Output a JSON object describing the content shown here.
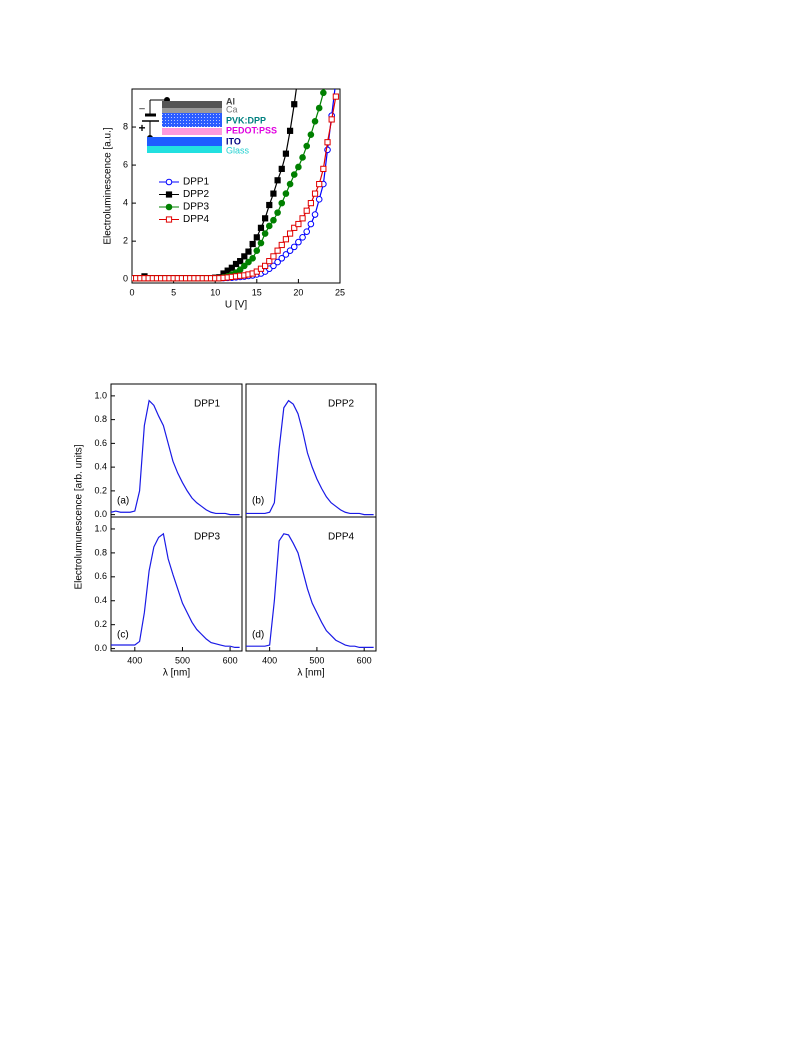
{
  "chart_data": [
    {
      "type": "line",
      "xlabel": "U [V]",
      "ylabel": "Electroluminescence [a.u.]",
      "xlim": [
        0,
        25
      ],
      "ylim": [
        -0.2,
        10
      ],
      "xticks": [
        0,
        5,
        10,
        15,
        20,
        25
      ],
      "yticks": [
        0,
        2,
        4,
        6,
        8
      ],
      "x": [
        0,
        0.5,
        1,
        1.5,
        2,
        2.5,
        3,
        3.5,
        4,
        4.5,
        5,
        5.5,
        6,
        6.5,
        7,
        7.5,
        8,
        8.5,
        9,
        9.5,
        10,
        10.5,
        11,
        11.5,
        12,
        12.5,
        13,
        13.5,
        14,
        14.5,
        15,
        15.5,
        16,
        16.5,
        17,
        17.5,
        18,
        18.5,
        19,
        19.5,
        20,
        20.5,
        21,
        21.5,
        22,
        22.5,
        23,
        23.5,
        24,
        24.5
      ],
      "series": [
        {
          "name": "DPP1",
          "color": "#0000ff",
          "marker": "circle",
          "filled": false,
          "values": [
            0.05,
            0.05,
            0.05,
            0.05,
            0.05,
            0.05,
            0.05,
            0.05,
            0.05,
            0.05,
            0.05,
            0.05,
            0.05,
            0.05,
            0.05,
            0.05,
            0.05,
            0.05,
            0.05,
            0.05,
            0.05,
            0.05,
            0.06,
            0.07,
            0.08,
            0.1,
            0.12,
            0.14,
            0.17,
            0.2,
            0.25,
            0.3,
            0.4,
            0.55,
            0.7,
            0.9,
            1.1,
            1.3,
            1.5,
            1.7,
            1.95,
            2.2,
            2.5,
            2.9,
            3.4,
            4.2,
            5.0,
            6.8,
            8.6,
            10.4
          ]
        },
        {
          "name": "DPP2",
          "color": "#000000",
          "marker": "square",
          "filled": true,
          "values": [
            0.05,
            0.05,
            0.05,
            0.15,
            0.05,
            0.05,
            0.05,
            0.05,
            0.05,
            0.05,
            0.05,
            0.05,
            0.05,
            0.05,
            0.05,
            0.05,
            0.05,
            0.05,
            0.05,
            0.05,
            0.08,
            0.1,
            0.3,
            0.45,
            0.6,
            0.8,
            0.95,
            1.2,
            1.45,
            1.85,
            2.2,
            2.7,
            3.2,
            3.9,
            4.5,
            5.2,
            5.8,
            6.6,
            7.8,
            9.2,
            10.8,
            null,
            null,
            null,
            null,
            null,
            null,
            null,
            null,
            null
          ]
        },
        {
          "name": "DPP3",
          "color": "#008000",
          "marker": "circle",
          "filled": true,
          "values": [
            0.05,
            0.05,
            0.05,
            0.05,
            0.05,
            0.05,
            0.05,
            0.05,
            0.05,
            0.05,
            0.05,
            0.05,
            0.05,
            0.05,
            0.05,
            0.05,
            0.05,
            0.05,
            0.05,
            0.05,
            0.05,
            0.05,
            0.1,
            0.15,
            0.25,
            0.35,
            0.5,
            0.7,
            0.9,
            1.1,
            1.5,
            1.9,
            2.4,
            2.8,
            3.1,
            3.5,
            4.0,
            4.5,
            5.0,
            5.5,
            5.9,
            6.4,
            7.0,
            7.6,
            8.3,
            9.0,
            9.8,
            10.6,
            null,
            null
          ]
        },
        {
          "name": "DPP4",
          "color": "#e00000",
          "marker": "square",
          "filled": false,
          "values": [
            0.05,
            0.05,
            0.05,
            0.05,
            0.05,
            0.05,
            0.05,
            0.05,
            0.05,
            0.05,
            0.05,
            0.05,
            0.05,
            0.05,
            0.05,
            0.05,
            0.05,
            0.05,
            0.05,
            0.05,
            0.05,
            0.05,
            0.07,
            0.09,
            0.12,
            0.15,
            0.18,
            0.2,
            0.25,
            0.3,
            0.4,
            0.55,
            0.7,
            0.95,
            1.2,
            1.5,
            1.8,
            2.1,
            2.4,
            2.7,
            2.9,
            3.2,
            3.6,
            4.0,
            4.5,
            5.0,
            5.8,
            7.2,
            8.4,
            9.6
          ]
        }
      ],
      "inset": {
        "layers": [
          "Al",
          "Ca",
          "PVK:DPP",
          "PEDOT:PSS",
          "ITO",
          "Glass"
        ],
        "minus": "–",
        "plus": "+"
      }
    },
    {
      "type": "panels",
      "ylabel": "Electrolumunescence  [arb. units]",
      "panels": [
        {
          "type": "line",
          "label": "(a)",
          "title": "DPP1",
          "color": "#1a1ae6",
          "xlim": [
            350,
            625
          ],
          "ylim": [
            -0.02,
            1.1
          ],
          "yticks": [
            {
              "value": 0,
              "label": "0.0"
            },
            0.2,
            0.4,
            0.6,
            0.8,
            {
              "value": 1,
              "label": "1.0"
            }
          ],
          "x": [
            350,
            360,
            370,
            380,
            390,
            400,
            410,
            420,
            430,
            440,
            450,
            460,
            470,
            480,
            490,
            500,
            510,
            520,
            530,
            540,
            550,
            560,
            570,
            580,
            590,
            600,
            610,
            620
          ],
          "values": [
            0.02,
            0.03,
            0.02,
            0.02,
            0.02,
            0.03,
            0.2,
            0.75,
            0.96,
            0.92,
            0.83,
            0.75,
            0.6,
            0.45,
            0.35,
            0.27,
            0.2,
            0.14,
            0.1,
            0.07,
            0.04,
            0.02,
            0.01,
            0.01,
            0.01,
            0.0,
            0.0,
            0.0
          ]
        },
        {
          "type": "line",
          "label": "(b)",
          "title": "DPP2",
          "color": "#1a1ae6",
          "xlim": [
            350,
            625
          ],
          "ylim": [
            -0.02,
            1.1
          ],
          "x": [
            350,
            360,
            370,
            380,
            390,
            400,
            410,
            420,
            430,
            440,
            450,
            460,
            470,
            480,
            490,
            500,
            510,
            520,
            530,
            540,
            550,
            560,
            570,
            580,
            590,
            600,
            610,
            620
          ],
          "values": [
            0.01,
            0.01,
            0.01,
            0.01,
            0.01,
            0.02,
            0.1,
            0.55,
            0.9,
            0.96,
            0.93,
            0.85,
            0.7,
            0.52,
            0.4,
            0.3,
            0.22,
            0.15,
            0.1,
            0.07,
            0.04,
            0.02,
            0.01,
            0.01,
            0.01,
            0.0,
            0.0,
            0.0
          ]
        },
        {
          "type": "line",
          "label": "(c)",
          "title": "DPP3",
          "color": "#1a1ae6",
          "xlim": [
            350,
            625
          ],
          "ylim": [
            -0.02,
            1.1
          ],
          "yticks": [
            {
              "value": 0,
              "label": "0.0"
            },
            0.2,
            0.4,
            0.6,
            0.8,
            {
              "value": 1,
              "label": "1.0"
            }
          ],
          "xticks": [
            400,
            500,
            600
          ],
          "xlabel": "λ [nm]",
          "x": [
            350,
            360,
            370,
            380,
            390,
            400,
            410,
            420,
            430,
            440,
            450,
            460,
            470,
            480,
            490,
            500,
            510,
            520,
            530,
            540,
            550,
            560,
            570,
            580,
            590,
            600,
            610,
            620
          ],
          "values": [
            0.03,
            0.03,
            0.03,
            0.03,
            0.03,
            0.03,
            0.06,
            0.3,
            0.65,
            0.85,
            0.93,
            0.96,
            0.75,
            0.62,
            0.5,
            0.38,
            0.3,
            0.22,
            0.16,
            0.12,
            0.08,
            0.05,
            0.04,
            0.03,
            0.02,
            0.02,
            0.01,
            0.01
          ]
        },
        {
          "type": "line",
          "label": "(d)",
          "title": "DPP4",
          "color": "#1a1ae6",
          "xlim": [
            350,
            625
          ],
          "ylim": [
            -0.02,
            1.1
          ],
          "xticks": [
            400,
            500,
            600
          ],
          "xlabel": "λ [nm]",
          "x": [
            350,
            360,
            370,
            380,
            390,
            400,
            410,
            420,
            430,
            440,
            450,
            460,
            470,
            480,
            490,
            500,
            510,
            520,
            530,
            540,
            550,
            560,
            570,
            580,
            590,
            600,
            610,
            620
          ],
          "values": [
            0.02,
            0.02,
            0.02,
            0.02,
            0.02,
            0.03,
            0.4,
            0.9,
            0.96,
            0.95,
            0.88,
            0.8,
            0.65,
            0.5,
            0.38,
            0.3,
            0.22,
            0.15,
            0.11,
            0.07,
            0.05,
            0.03,
            0.02,
            0.02,
            0.01,
            0.01,
            0.01,
            0.01
          ]
        }
      ]
    }
  ]
}
